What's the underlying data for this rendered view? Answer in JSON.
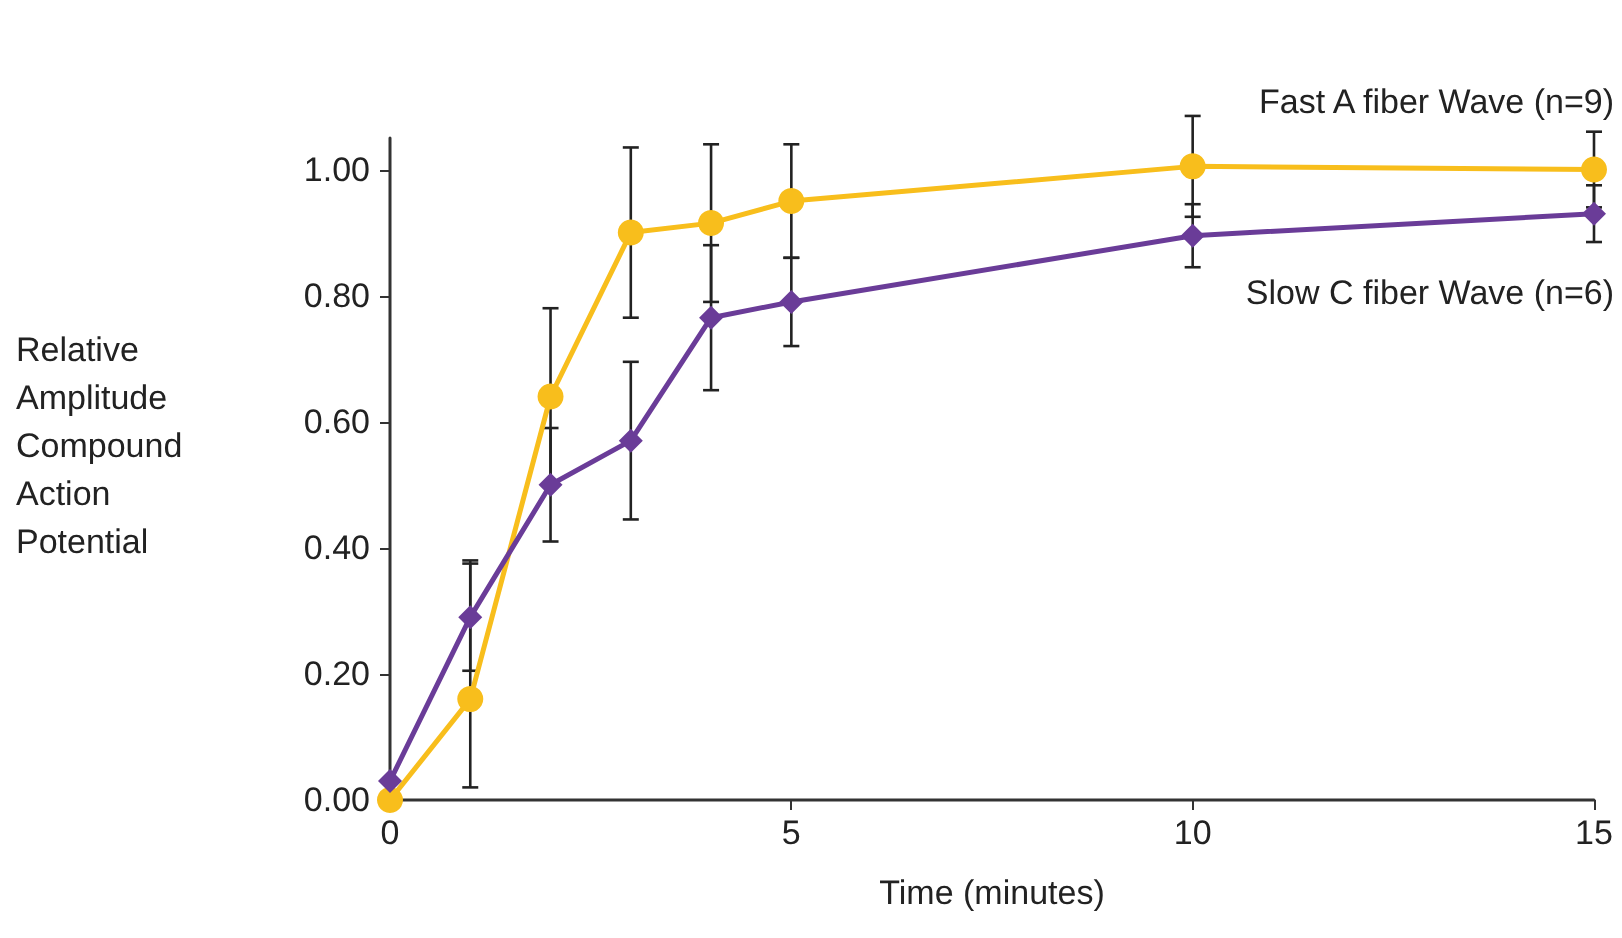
{
  "chart_data": {
    "type": "line",
    "xlabel": "Time (minutes)",
    "ylabel": "Relative Amplitude Compound Action Potential",
    "xlim": [
      0,
      15
    ],
    "xticks": [
      0,
      5,
      10,
      15
    ],
    "ylim": [
      0,
      1.05
    ],
    "yticks": [
      {
        "value": 0,
        "label": "0.00"
      },
      {
        "value": 0.2,
        "label": "0.20"
      },
      {
        "value": 0.4,
        "label": "0.40"
      },
      {
        "value": 0.6,
        "label": "0.60"
      },
      {
        "value": 0.8,
        "label": "0.80"
      },
      {
        "value": 1,
        "label": "1.00"
      }
    ],
    "grid": false,
    "legend": false,
    "line_style": "solid",
    "series": [
      {
        "name": "Fast A fiber Wave (n=9)",
        "color": "#f8be1c",
        "marker": "circle",
        "x": [
          0,
          1,
          2,
          3,
          4,
          5,
          10,
          15
        ],
        "values": [
          0,
          0.16,
          0.64,
          0.9,
          0.915,
          0.95,
          1.005,
          1.0
        ],
        "errors": [
          null,
          [
            0.02,
            0.38
          ],
          0.14,
          0.135,
          0.125,
          0.09,
          0.08,
          0.06
        ]
      },
      {
        "name": "Slow C fiber Wave (n=6)",
        "color": "#6a3c98",
        "marker": "diamond",
        "x": [
          0,
          1,
          2,
          3,
          4,
          5,
          10,
          15
        ],
        "values": [
          0.03,
          0.29,
          0.5,
          0.57,
          0.765,
          0.79,
          0.895,
          0.93
        ],
        "errors": [
          null,
          0.085,
          0.09,
          0.125,
          0.115,
          0.07,
          0.05,
          0.045
        ]
      }
    ]
  }
}
